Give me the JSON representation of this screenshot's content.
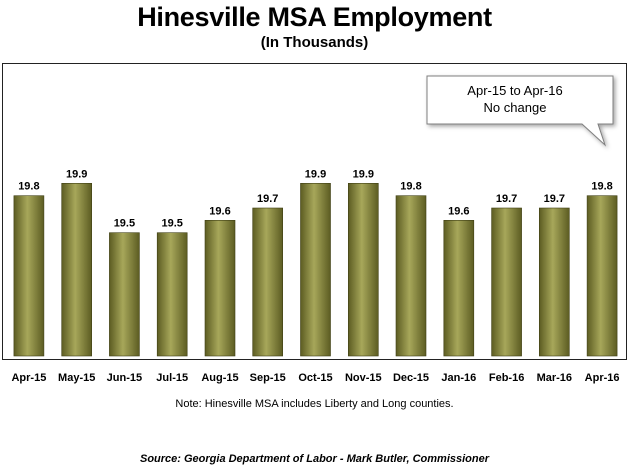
{
  "chart_data": {
    "type": "bar",
    "title": "Hinesville MSA Employment",
    "subtitle": "(In Thousands)",
    "categories": [
      "Apr-15",
      "May-15",
      "Jun-15",
      "Jul-15",
      "Aug-15",
      "Sep-15",
      "Oct-15",
      "Nov-15",
      "Dec-15",
      "Jan-16",
      "Feb-16",
      "Mar-16",
      "Apr-16"
    ],
    "values": [
      19.8,
      19.9,
      19.5,
      19.5,
      19.6,
      19.7,
      19.9,
      19.9,
      19.8,
      19.6,
      19.7,
      19.7,
      19.8
    ],
    "data_labels": [
      "19.8",
      "19.9",
      "19.5",
      "19.5",
      "19.6",
      "19.7",
      "19.9",
      "19.9",
      "19.8",
      "19.6",
      "19.7",
      "19.7",
      "19.8"
    ],
    "xlabel": "",
    "ylabel": "",
    "ylim": [
      18.5,
      20.0
    ],
    "grid": false,
    "bar_color": "#5c5c22",
    "bar_highlight_color": "#a7a75a",
    "annotation": {
      "line1": "Apr-15 to Apr-16",
      "line2": "No change"
    }
  },
  "note": "Note: Hinesville MSA includes Liberty and Long counties.",
  "source": "Source: Georgia Department of Labor - Mark Butler, Commissioner"
}
